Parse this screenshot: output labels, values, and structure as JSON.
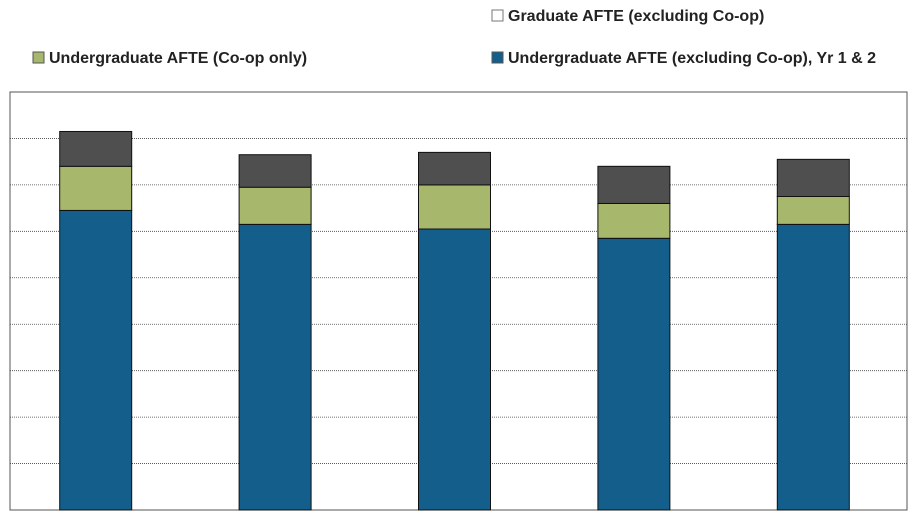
{
  "chart_data": {
    "type": "bar",
    "stacked": true,
    "categories": [
      "",
      "",
      "",
      "",
      ""
    ],
    "series": [
      {
        "name": "Undergraduate AFTE (excluding Co-op)",
        "color": "#145e8c",
        "values": [
          6.45,
          6.15,
          6.05,
          5.85,
          6.15
        ]
      },
      {
        "name": "Undergraduate AFTE (Co-op only)",
        "color": "#a7b86d",
        "values": [
          0.95,
          0.8,
          0.95,
          0.75,
          0.6
        ]
      },
      {
        "name": "Graduate AFTE (excluding Co-op)",
        "color": "#4f4f4f",
        "values": [
          0.75,
          0.7,
          0.7,
          0.8,
          0.8
        ]
      }
    ],
    "ylim": [
      0,
      9
    ],
    "grid": true,
    "legend_position": "top",
    "legend_labels": {
      "graduate": "Graduate AFTE (excluding Co-op)",
      "ug_coop": "Undergraduate AFTE (Co-op only)",
      "ug_excl": "Undergraduate AFTE (excluding Co-op), Yr 1 & 2"
    }
  }
}
